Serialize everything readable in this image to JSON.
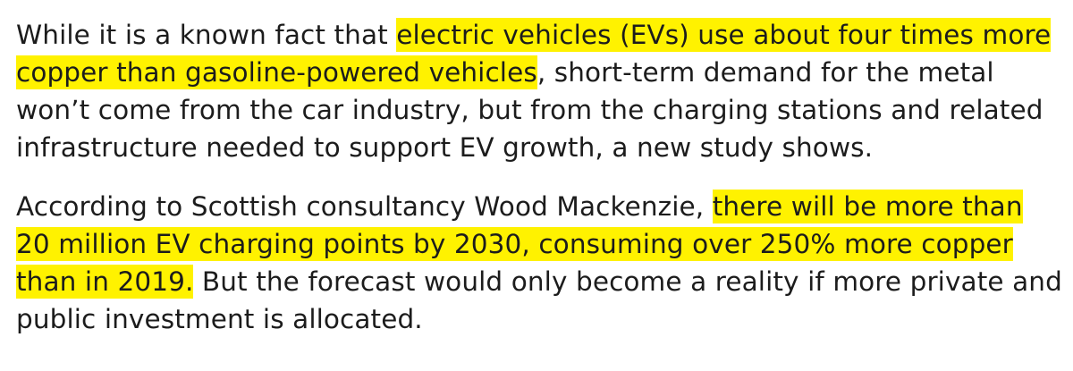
{
  "article": {
    "paragraphs": [
      {
        "pre": "While it is a known fact that ",
        "highlight": "electric vehicles (EVs) use about four times more copper than gasoline-powered vehicles",
        "post": ", short-term demand for the metal won’t come from the car industry, but from the charging stations and related infrastructure needed to support EV growth, a new study shows."
      },
      {
        "pre": "According to Scottish consultancy Wood Mackenzie, ",
        "highlight": "there will be more than 20 million EV charging points by 2030, consuming over 250% more copper than in 2019.",
        "post": " But the forecast would only become a reality if more private and public investment is allocated."
      }
    ],
    "highlight_color": "#fff200"
  }
}
